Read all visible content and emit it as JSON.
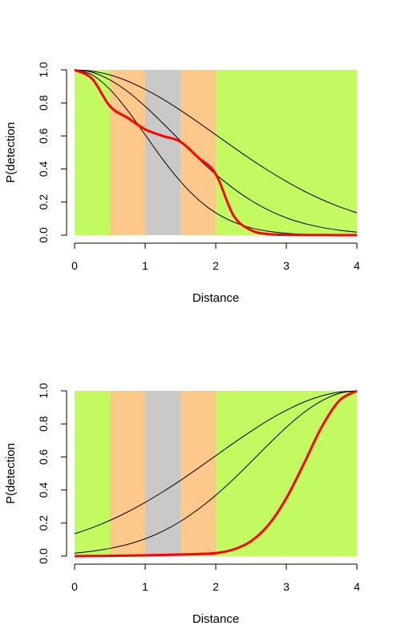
{
  "chart_data": [
    {
      "type": "line",
      "xlabel": "Distance",
      "ylabel": "P(detection",
      "xlim": [
        0,
        4
      ],
      "ylim": [
        0,
        1
      ],
      "xticks": [
        "0",
        "1",
        "2",
        "3",
        "4"
      ],
      "yticks": [
        "0.0",
        "0.2",
        "0.4",
        "0.6",
        "0.8",
        "1.0"
      ],
      "bands": [
        {
          "from": 0,
          "to": 0.5,
          "color": "#c2fa5f"
        },
        {
          "from": 0.5,
          "to": 1.0,
          "color": "#fdc98a"
        },
        {
          "from": 1.0,
          "to": 1.5,
          "color": "#c8c8c8"
        },
        {
          "from": 1.5,
          "to": 2.0,
          "color": "#fdc98a"
        },
        {
          "from": 2.0,
          "to": 4.0,
          "color": "#c2fa5f"
        }
      ],
      "x": [
        0,
        0.25,
        0.5,
        0.75,
        1.0,
        1.25,
        1.5,
        1.75,
        2.0,
        2.25,
        2.5,
        2.75,
        3.0,
        3.25,
        3.5,
        3.75,
        4.0
      ],
      "series": [
        {
          "color": "#000000",
          "width": 1,
          "values": [
            1,
            0.969,
            0.882,
            0.755,
            0.607,
            0.458,
            0.325,
            0.216,
            0.135,
            0.08,
            0.044,
            0.023,
            0.011,
            0.005,
            0.002,
            0.001,
            0.0003
          ]
        },
        {
          "color": "#000000",
          "width": 1,
          "values": [
            1,
            0.985,
            0.939,
            0.869,
            0.779,
            0.677,
            0.57,
            0.465,
            0.368,
            0.283,
            0.21,
            0.151,
            0.105,
            0.071,
            0.047,
            0.03,
            0.018
          ]
        },
        {
          "color": "#000000",
          "width": 1,
          "values": [
            1,
            0.992,
            0.969,
            0.932,
            0.882,
            0.823,
            0.755,
            0.683,
            0.607,
            0.532,
            0.458,
            0.389,
            0.325,
            0.267,
            0.216,
            0.172,
            0.135
          ]
        },
        {
          "color": "#ff0000",
          "width": 3,
          "values": [
            1,
            0.945,
            0.78,
            0.71,
            0.64,
            0.6,
            0.565,
            0.47,
            0.37,
            0.12,
            0.03,
            0.006,
            0.002,
            0.001,
            0.0005,
            0.0002,
            0.0001
          ]
        }
      ]
    },
    {
      "type": "line",
      "xlabel": "Distance",
      "ylabel": "P(detection",
      "xlim": [
        0,
        4
      ],
      "ylim": [
        0,
        1
      ],
      "xticks": [
        "0",
        "1",
        "2",
        "3",
        "4"
      ],
      "yticks": [
        "0.0",
        "0.2",
        "0.4",
        "0.6",
        "0.8",
        "1.0"
      ],
      "bands": [
        {
          "from": 0,
          "to": 0.5,
          "color": "#c2fa5f"
        },
        {
          "from": 0.5,
          "to": 1.0,
          "color": "#fdc98a"
        },
        {
          "from": 1.0,
          "to": 1.5,
          "color": "#c8c8c8"
        },
        {
          "from": 1.5,
          "to": 2.0,
          "color": "#fdc98a"
        },
        {
          "from": 2.0,
          "to": 4.0,
          "color": "#c2fa5f"
        }
      ],
      "x": [
        0,
        0.25,
        0.5,
        0.75,
        1.0,
        1.25,
        1.5,
        1.75,
        2.0,
        2.25,
        2.5,
        2.75,
        3.0,
        3.25,
        3.5,
        3.75,
        4.0
      ],
      "series": [
        {
          "color": "#000000",
          "width": 1,
          "values": [
            0.135,
            0.172,
            0.216,
            0.267,
            0.325,
            0.389,
            0.458,
            0.532,
            0.607,
            0.683,
            0.755,
            0.823,
            0.882,
            0.932,
            0.969,
            0.992,
            1
          ]
        },
        {
          "color": "#000000",
          "width": 1,
          "values": [
            0.018,
            0.03,
            0.047,
            0.071,
            0.105,
            0.151,
            0.21,
            0.283,
            0.368,
            0.465,
            0.57,
            0.677,
            0.779,
            0.869,
            0.939,
            0.985,
            1
          ]
        },
        {
          "color": "#ff0000",
          "width": 3,
          "values": [
            0.0003,
            0.001,
            0.002,
            0.003,
            0.005,
            0.007,
            0.01,
            0.013,
            0.018,
            0.04,
            0.09,
            0.19,
            0.35,
            0.56,
            0.78,
            0.94,
            1
          ]
        }
      ]
    }
  ]
}
